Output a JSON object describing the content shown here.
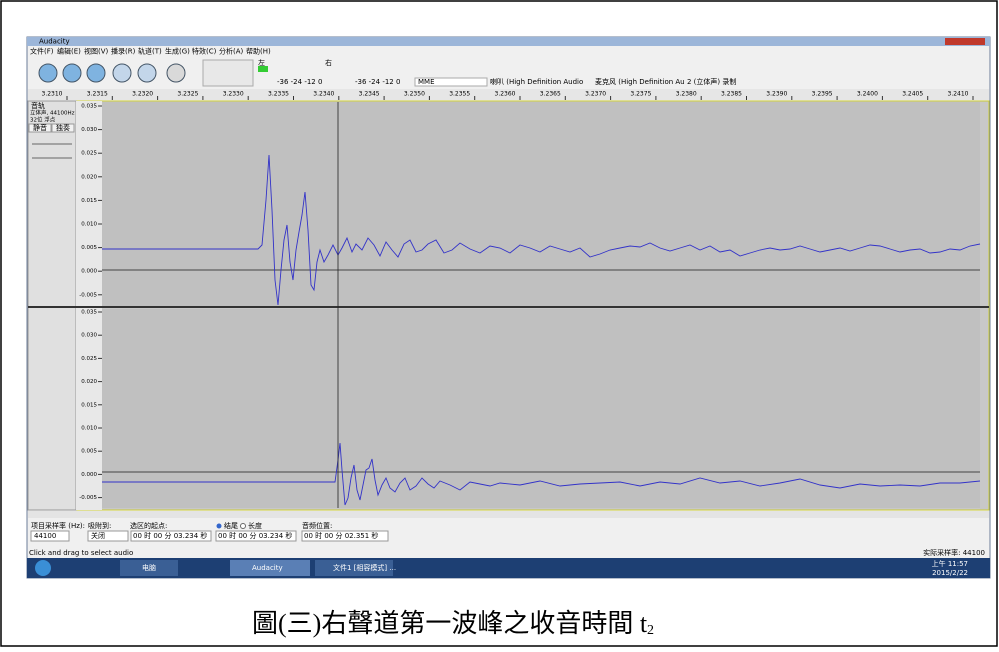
{
  "window": {
    "title": "Audacity"
  },
  "menu": [
    "文件(F)",
    "编辑(E)",
    "视图(V)",
    "播录(R)",
    "轨道(T)",
    "生成(G)",
    "特效(C)",
    "分析(A)",
    "帮助(H)"
  ],
  "toolbar": {
    "meter_left": "左",
    "meter_right": "右",
    "play_scale": "-36  -24  -12  0",
    "record_scale": "-36  -24  -12  0",
    "host": "MME",
    "output_device": "喇叭 (High Definition Audio",
    "input_device": "麦克风 (High Definition Au",
    "channels": "2 (立体声) 录制"
  },
  "timeline": [
    "3.2310",
    "3.2315",
    "3.2320",
    "3.2325",
    "3.2330",
    "3.2335",
    "3.2340",
    "3.2345",
    "3.2350",
    "3.2355",
    "3.2360",
    "3.2365",
    "3.2370",
    "3.2375",
    "3.2380",
    "3.2385",
    "3.2390",
    "3.2395",
    "3.2400",
    "3.2405",
    "3.2410"
  ],
  "track": {
    "name": "音轨",
    "info": "立体声, 44100Hz",
    "format": "32位 浮点",
    "mute": "静音",
    "solo": "独奏",
    "upper_ticks": [
      "0.035",
      "0.030",
      "0.025",
      "0.020",
      "0.015",
      "0.010",
      "0.005",
      "0.000",
      "-0.005"
    ],
    "lower_ticks": [
      "0.035",
      "0.030",
      "0.025",
      "0.020",
      "0.015",
      "0.010",
      "0.005",
      "0.000",
      "-0.005"
    ]
  },
  "selection_bar": {
    "rate_label": "项目采样率 (Hz):",
    "rate": "44100",
    "snap_label": "吸附到:",
    "snap": "关闭",
    "start_label": "选区的起点:",
    "end_option": "结尾",
    "length_option": "长度",
    "start": "00 时 00 分 03.234 秒",
    "end": "00 时 00 分 03.234 秒",
    "position_label": "音频位置:",
    "position": "00 时 00 分 02.351 秒"
  },
  "status": {
    "hint": "Click and drag to select audio",
    "actual_rate": "实际采样率: 44100"
  },
  "taskbar": {
    "explorer": "电脑",
    "audacity": "Audacity",
    "word": "文件1 [相容模式] ...",
    "time": "上午 11:57",
    "date": "2015/2/22"
  },
  "caption": {
    "text": "圖(三)右聲道第一波峰之收音時間 t",
    "subscript": "2"
  }
}
